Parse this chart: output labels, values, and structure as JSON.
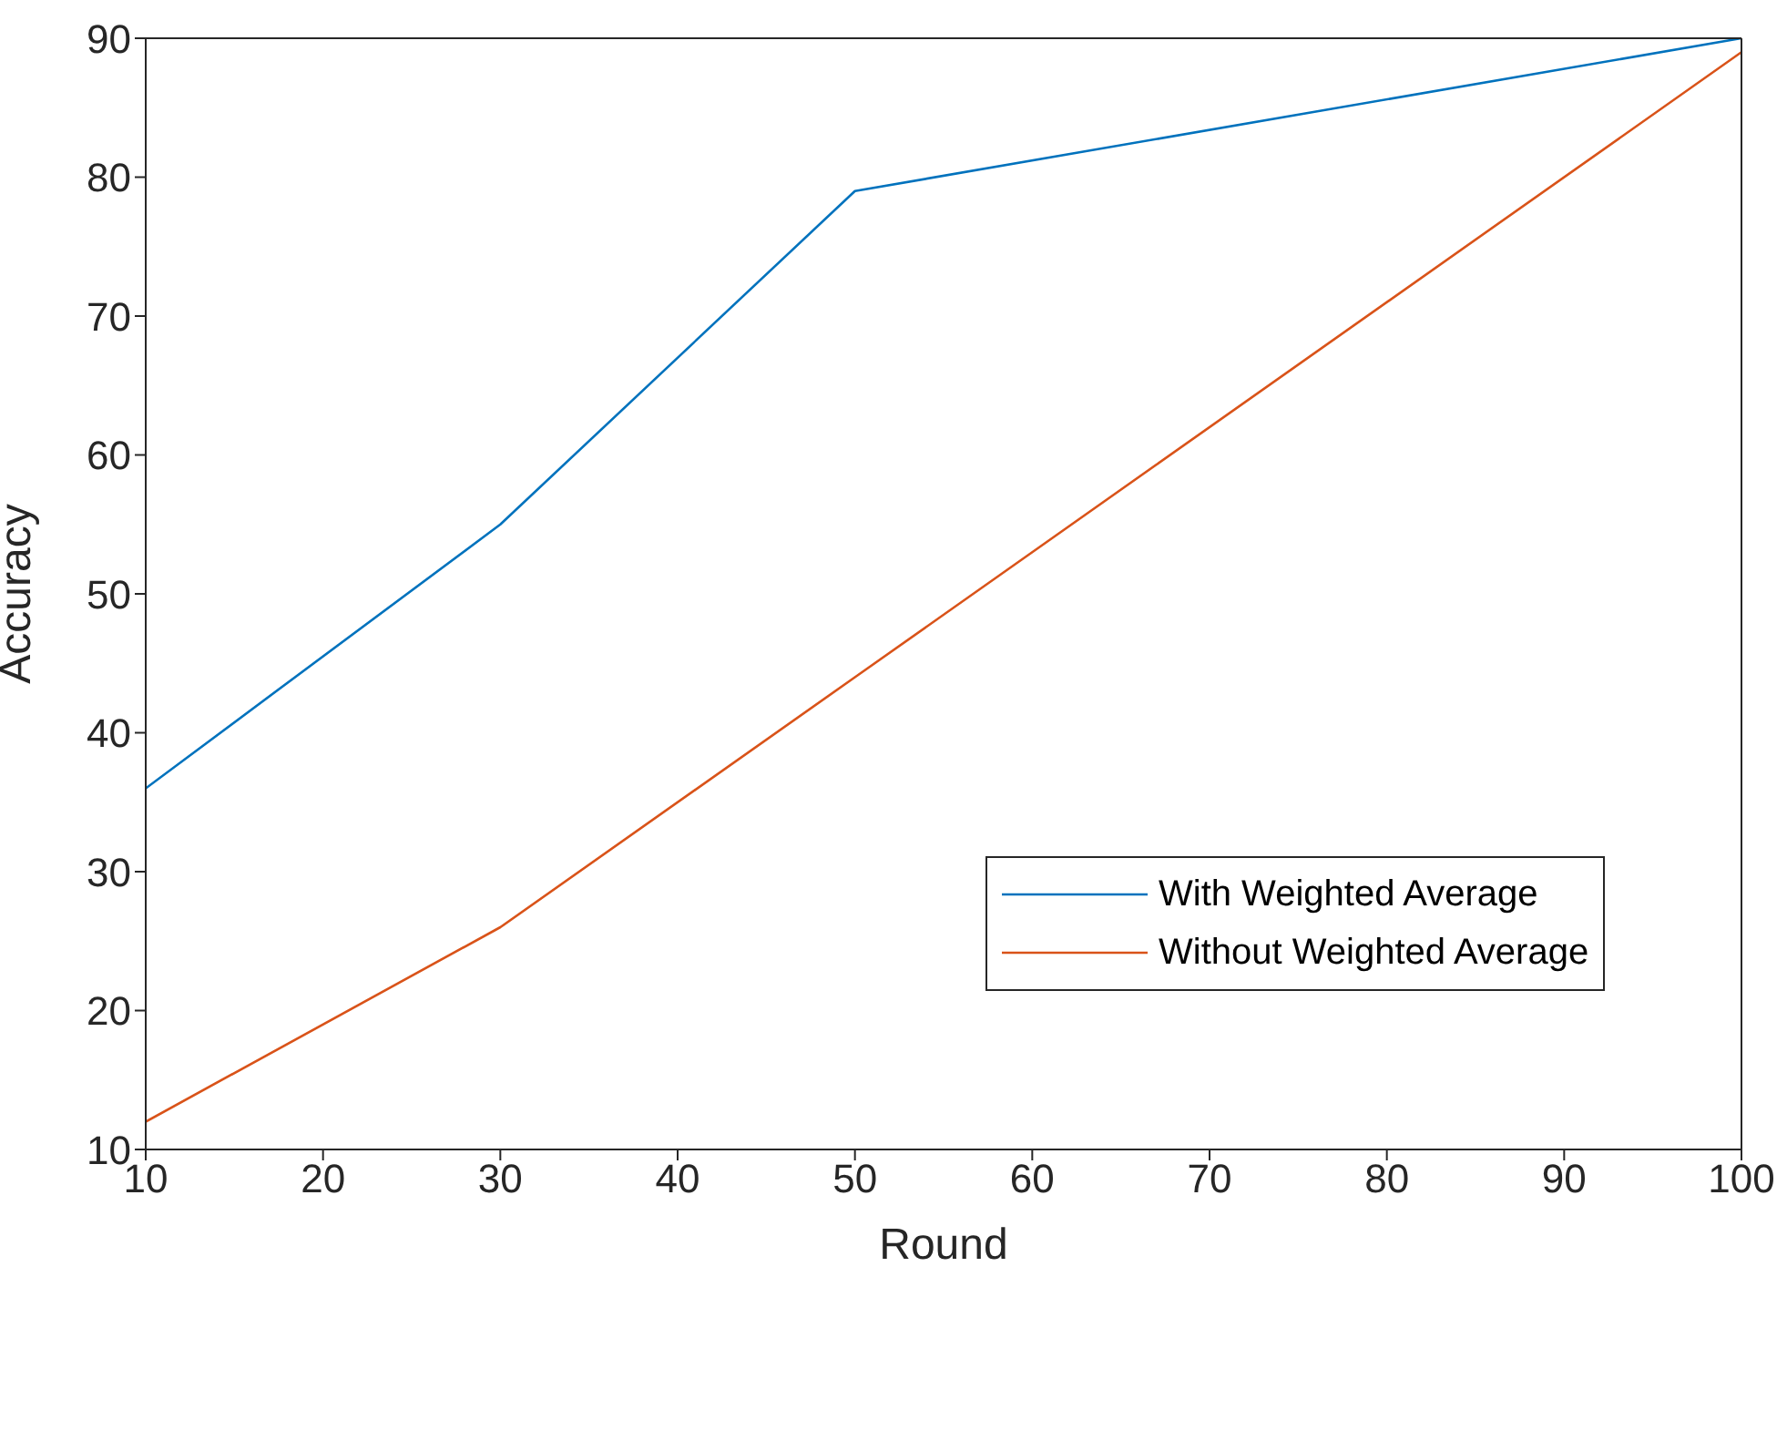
{
  "chart_data": {
    "type": "line",
    "xlabel": "Round",
    "ylabel": "Accuracy",
    "x": [
      10,
      30,
      50,
      100
    ],
    "series": [
      {
        "name": "With Weighted Average",
        "color": "#0072bd",
        "values": [
          36,
          55,
          79,
          90
        ]
      },
      {
        "name": "Without Weighted Average",
        "color": "#d95319",
        "values": [
          12,
          26,
          44,
          89
        ]
      }
    ],
    "xlim": [
      10,
      100
    ],
    "xticks": [
      10,
      20,
      30,
      40,
      50,
      60,
      70,
      80,
      90,
      100
    ],
    "ylim": [
      10,
      90
    ],
    "yticks": [
      10,
      20,
      30,
      40,
      50,
      60,
      70,
      80,
      90
    ],
    "grid": false,
    "legend": "right",
    "marker": "none",
    "line_style": "solid"
  }
}
